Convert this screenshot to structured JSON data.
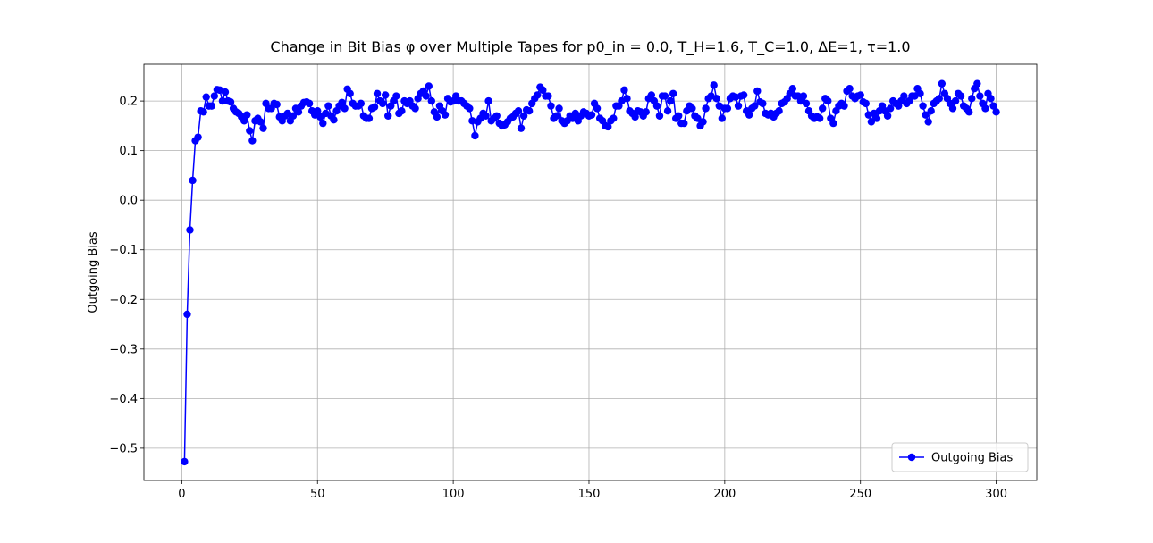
{
  "chart_data": {
    "type": "line",
    "title": "Change in Bit Bias φ over Multiple Tapes for p0_in = 0.0, T_H=1.6, T_C=1.0, ΔE=1, τ=1.0",
    "y_label": "Outgoing Bias",
    "x": [
      1,
      2,
      3,
      4,
      5,
      6,
      7,
      8,
      9,
      10,
      11,
      12,
      13,
      14,
      15,
      16,
      17,
      18,
      19,
      20,
      21,
      22,
      23,
      24,
      25,
      26,
      27,
      28,
      29,
      30,
      31,
      32,
      33,
      34,
      35,
      36,
      37,
      38,
      39,
      40,
      41,
      42,
      43,
      44,
      45,
      46,
      47,
      48,
      49,
      50,
      51,
      52,
      53,
      54,
      55,
      56,
      57,
      58,
      59,
      60,
      61,
      62,
      63,
      64,
      65,
      66,
      67,
      68,
      69,
      70,
      71,
      72,
      73,
      74,
      75,
      76,
      77,
      78,
      79,
      80,
      81,
      82,
      83,
      84,
      85,
      86,
      87,
      88,
      89,
      90,
      91,
      92,
      93,
      94,
      95,
      96,
      97,
      98,
      99,
      100,
      101,
      102,
      103,
      104,
      105,
      106,
      107,
      108,
      109,
      110,
      111,
      112,
      113,
      114,
      115,
      116,
      117,
      118,
      119,
      120,
      121,
      122,
      123,
      124,
      125,
      126,
      127,
      128,
      129,
      130,
      131,
      132,
      133,
      134,
      135,
      136,
      137,
      138,
      139,
      140,
      141,
      142,
      143,
      144,
      145,
      146,
      147,
      148,
      149,
      150,
      151,
      152,
      153,
      154,
      155,
      156,
      157,
      158,
      159,
      160,
      161,
      162,
      163,
      164,
      165,
      166,
      167,
      168,
      169,
      170,
      171,
      172,
      173,
      174,
      175,
      176,
      177,
      178,
      179,
      180,
      181,
      182,
      183,
      184,
      185,
      186,
      187,
      188,
      189,
      190,
      191,
      192,
      193,
      194,
      195,
      196,
      197,
      198,
      199,
      200,
      201,
      202,
      203,
      204,
      205,
      206,
      207,
      208,
      209,
      210,
      211,
      212,
      213,
      214,
      215,
      216,
      217,
      218,
      219,
      220,
      221,
      222,
      223,
      224,
      225,
      226,
      227,
      228,
      229,
      230,
      231,
      232,
      233,
      234,
      235,
      236,
      237,
      238,
      239,
      240,
      241,
      242,
      243,
      244,
      245,
      246,
      247,
      248,
      249,
      250,
      251,
      252,
      253,
      254,
      255,
      256,
      257,
      258,
      259,
      260,
      261,
      262,
      263,
      264,
      265,
      266,
      267,
      268,
      269,
      270,
      271,
      272,
      273,
      274,
      275,
      276,
      277,
      278,
      279,
      280,
      281,
      282,
      283,
      284,
      285,
      286,
      287,
      288,
      289,
      290,
      291,
      292,
      293,
      294,
      295,
      296,
      297,
      298,
      299,
      300
    ],
    "series": [
      {
        "name": "Outgoing Bias",
        "color": "#0000ff",
        "marker": "circle",
        "values": [
          -0.527,
          -0.23,
          -0.06,
          0.04,
          0.12,
          0.127,
          0.18,
          0.178,
          0.208,
          0.19,
          0.19,
          0.21,
          0.223,
          0.222,
          0.2,
          0.218,
          0.2,
          0.198,
          0.185,
          0.178,
          0.175,
          0.168,
          0.16,
          0.172,
          0.14,
          0.12,
          0.16,
          0.165,
          0.158,
          0.145,
          0.195,
          0.185,
          0.185,
          0.195,
          0.193,
          0.168,
          0.16,
          0.17,
          0.175,
          0.16,
          0.17,
          0.185,
          0.178,
          0.19,
          0.197,
          0.198,
          0.195,
          0.18,
          0.172,
          0.18,
          0.168,
          0.155,
          0.175,
          0.19,
          0.17,
          0.162,
          0.18,
          0.19,
          0.197,
          0.185,
          0.224,
          0.215,
          0.195,
          0.19,
          0.19,
          0.195,
          0.17,
          0.165,
          0.165,
          0.185,
          0.188,
          0.215,
          0.2,
          0.195,
          0.212,
          0.17,
          0.19,
          0.2,
          0.21,
          0.175,
          0.18,
          0.2,
          0.195,
          0.2,
          0.19,
          0.185,
          0.205,
          0.215,
          0.22,
          0.21,
          0.23,
          0.2,
          0.178,
          0.168,
          0.19,
          0.18,
          0.172,
          0.205,
          0.198,
          0.2,
          0.21,
          0.2,
          0.2,
          0.195,
          0.19,
          0.185,
          0.16,
          0.13,
          0.158,
          0.165,
          0.175,
          0.17,
          0.2,
          0.16,
          0.165,
          0.17,
          0.155,
          0.15,
          0.152,
          0.158,
          0.165,
          0.168,
          0.175,
          0.18,
          0.145,
          0.17,
          0.182,
          0.18,
          0.195,
          0.205,
          0.212,
          0.228,
          0.222,
          0.21,
          0.21,
          0.19,
          0.165,
          0.17,
          0.185,
          0.16,
          0.155,
          0.16,
          0.17,
          0.165,
          0.175,
          0.16,
          0.17,
          0.178,
          0.175,
          0.17,
          0.172,
          0.195,
          0.185,
          0.165,
          0.16,
          0.15,
          0.148,
          0.16,
          0.165,
          0.19,
          0.19,
          0.2,
          0.222,
          0.205,
          0.18,
          0.175,
          0.168,
          0.18,
          0.178,
          0.17,
          0.178,
          0.205,
          0.212,
          0.2,
          0.19,
          0.17,
          0.21,
          0.21,
          0.18,
          0.2,
          0.215,
          0.165,
          0.17,
          0.155,
          0.155,
          0.18,
          0.19,
          0.185,
          0.17,
          0.165,
          0.15,
          0.158,
          0.185,
          0.205,
          0.21,
          0.232,
          0.205,
          0.19,
          0.165,
          0.185,
          0.185,
          0.205,
          0.21,
          0.208,
          0.19,
          0.21,
          0.212,
          0.18,
          0.172,
          0.185,
          0.19,
          0.22,
          0.198,
          0.195,
          0.175,
          0.172,
          0.175,
          0.168,
          0.175,
          0.18,
          0.195,
          0.198,
          0.205,
          0.215,
          0.225,
          0.21,
          0.21,
          0.2,
          0.21,
          0.195,
          0.18,
          0.17,
          0.165,
          0.168,
          0.165,
          0.185,
          0.205,
          0.2,
          0.165,
          0.155,
          0.18,
          0.19,
          0.195,
          0.19,
          0.22,
          0.225,
          0.21,
          0.205,
          0.21,
          0.212,
          0.198,
          0.195,
          0.172,
          0.158,
          0.175,
          0.165,
          0.18,
          0.19,
          0.18,
          0.17,
          0.185,
          0.2,
          0.195,
          0.19,
          0.2,
          0.21,
          0.195,
          0.2,
          0.21,
          0.21,
          0.225,
          0.215,
          0.19,
          0.172,
          0.158,
          0.18,
          0.195,
          0.2,
          0.205,
          0.235,
          0.215,
          0.205,
          0.195,
          0.185,
          0.2,
          0.215,
          0.21,
          0.19,
          0.185,
          0.178,
          0.205,
          0.225,
          0.235,
          0.21,
          0.195,
          0.185,
          0.215,
          0.205,
          0.19,
          0.178
        ]
      }
    ],
    "xlim": [
      -13.95,
      314.95
    ],
    "xticks": [
      0,
      50,
      100,
      150,
      200,
      250,
      300
    ],
    "ylim": [
      -0.565,
      0.274
    ],
    "yticks": [
      {
        "value": -0.5,
        "label": "−0.5"
      },
      {
        "value": -0.4,
        "label": "−0.4"
      },
      {
        "value": -0.3,
        "label": "−0.3"
      },
      {
        "value": -0.2,
        "label": "−0.2"
      },
      {
        "value": -0.1,
        "label": "−0.1"
      },
      {
        "value": 0,
        "label": "0.0"
      },
      0.1,
      0.2
    ],
    "grid": true,
    "legend": "lower right"
  }
}
